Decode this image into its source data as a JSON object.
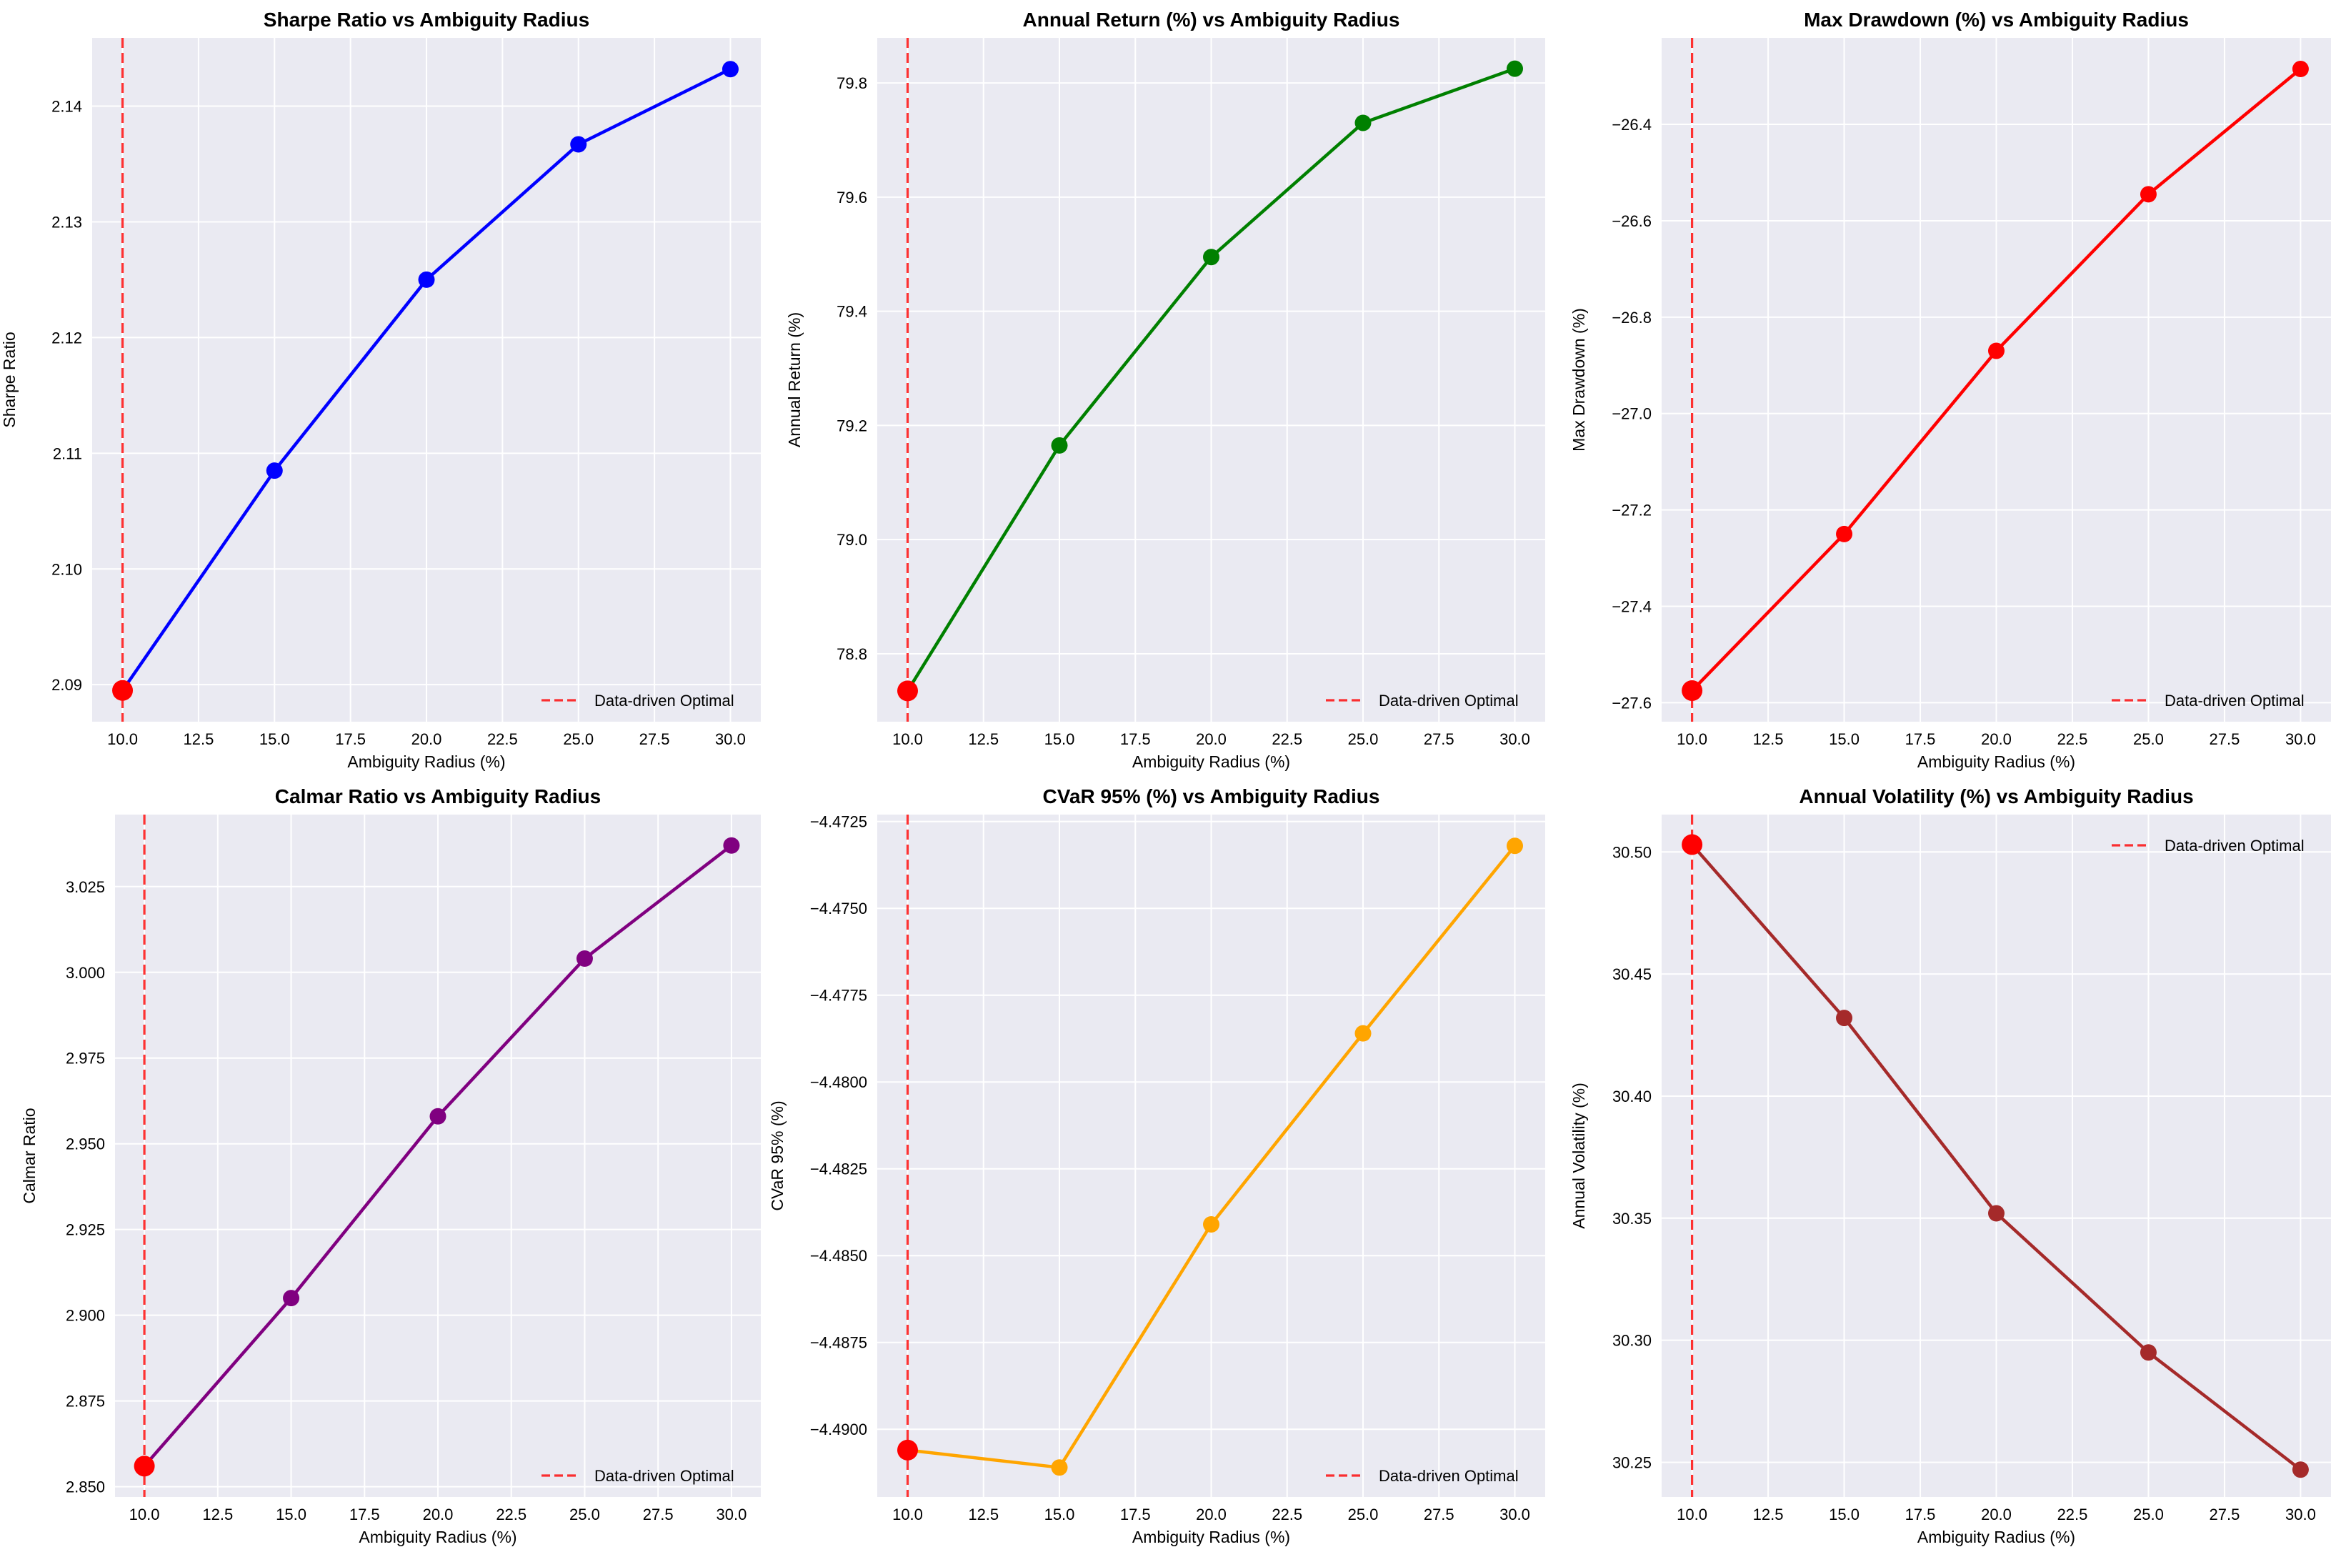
{
  "chart_data": [
    {
      "type": "line",
      "title": "Sharpe Ratio vs Ambiguity Radius",
      "xlabel": "Ambiguity Radius (%)",
      "ylabel": "Sharpe Ratio",
      "x": [
        10,
        15,
        20,
        25,
        30
      ],
      "values": [
        2.0895,
        2.1085,
        2.125,
        2.1367,
        2.1432
      ],
      "xlim": [
        9.0,
        31.0
      ],
      "ylim": [
        2.0868,
        2.1459
      ],
      "xticks": [
        10,
        12.5,
        15,
        17.5,
        20,
        22.5,
        25,
        27.5,
        30
      ],
      "xtick_labels": [
        "10.0",
        "12.5",
        "15.0",
        "17.5",
        "20.0",
        "22.5",
        "25.0",
        "27.5",
        "30.0"
      ],
      "yticks": [
        2.09,
        2.1,
        2.11,
        2.12,
        2.13,
        2.14
      ],
      "ytick_labels": [
        "2.09",
        "2.10",
        "2.11",
        "2.12",
        "2.13",
        "2.14"
      ],
      "color": "#0000ff",
      "optimal_x": 10,
      "legend": "Data-driven Optimal",
      "legend_position": "lower-right"
    },
    {
      "type": "line",
      "title": "Annual Return (%) vs Ambiguity Radius",
      "xlabel": "Ambiguity Radius (%)",
      "ylabel": "Annual Return (%)",
      "x": [
        10,
        15,
        20,
        25,
        30
      ],
      "values": [
        78.735,
        79.165,
        79.495,
        79.73,
        79.825
      ],
      "xlim": [
        9.0,
        31.0
      ],
      "ylim": [
        78.681,
        79.879
      ],
      "xticks": [
        10,
        12.5,
        15,
        17.5,
        20,
        22.5,
        25,
        27.5,
        30
      ],
      "xtick_labels": [
        "10.0",
        "12.5",
        "15.0",
        "17.5",
        "20.0",
        "22.5",
        "25.0",
        "27.5",
        "30.0"
      ],
      "yticks": [
        78.8,
        79.0,
        79.2,
        79.4,
        79.6,
        79.8
      ],
      "ytick_labels": [
        "78.8",
        "79.0",
        "79.2",
        "79.4",
        "79.6",
        "79.8"
      ],
      "color": "#008000",
      "optimal_x": 10,
      "legend": "Data-driven Optimal",
      "legend_position": "lower-right"
    },
    {
      "type": "line",
      "title": "Max Drawdown (%) vs Ambiguity Radius",
      "xlabel": "Ambiguity Radius (%)",
      "ylabel": "Max Drawdown (%)",
      "x": [
        10,
        15,
        20,
        25,
        30
      ],
      "values": [
        -27.575,
        -27.25,
        -26.87,
        -26.545,
        -26.285
      ],
      "xlim": [
        9.0,
        31.0
      ],
      "ylim": [
        -27.6395,
        -26.2205
      ],
      "xticks": [
        10,
        12.5,
        15,
        17.5,
        20,
        22.5,
        25,
        27.5,
        30
      ],
      "xtick_labels": [
        "10.0",
        "12.5",
        "15.0",
        "17.5",
        "20.0",
        "22.5",
        "25.0",
        "27.5",
        "30.0"
      ],
      "yticks": [
        -27.6,
        -27.4,
        -27.2,
        -27.0,
        -26.8,
        -26.6,
        -26.4
      ],
      "ytick_labels": [
        "−27.6",
        "−27.4",
        "−27.2",
        "−27.0",
        "−26.8",
        "−26.6",
        "−26.4"
      ],
      "color": "#ff0000",
      "optimal_x": 10,
      "legend": "Data-driven Optimal",
      "legend_position": "lower-right"
    },
    {
      "type": "line",
      "title": "Calmar Ratio vs Ambiguity Radius",
      "xlabel": "Ambiguity Radius (%)",
      "ylabel": "Calmar Ratio",
      "x": [
        10,
        15,
        20,
        25,
        30
      ],
      "values": [
        2.856,
        2.905,
        2.958,
        3.004,
        3.037
      ],
      "xlim": [
        9.0,
        31.0
      ],
      "ylim": [
        2.847,
        3.046
      ],
      "xticks": [
        10,
        12.5,
        15,
        17.5,
        20,
        22.5,
        25,
        27.5,
        30
      ],
      "xtick_labels": [
        "10.0",
        "12.5",
        "15.0",
        "17.5",
        "20.0",
        "22.5",
        "25.0",
        "27.5",
        "30.0"
      ],
      "yticks": [
        2.85,
        2.875,
        2.9,
        2.925,
        2.95,
        2.975,
        3.0,
        3.025
      ],
      "ytick_labels": [
        "2.850",
        "2.875",
        "2.900",
        "2.925",
        "2.950",
        "2.975",
        "3.000",
        "3.025"
      ],
      "color": "#800080",
      "optimal_x": 10,
      "legend": "Data-driven Optimal",
      "legend_position": "lower-right"
    },
    {
      "type": "line",
      "title": "CVaR 95% (%) vs Ambiguity Radius",
      "xlabel": "Ambiguity Radius (%)",
      "ylabel": "CVaR 95% (%)",
      "x": [
        10,
        15,
        20,
        25,
        30
      ],
      "values": [
        -4.4906,
        -4.4911,
        -4.4841,
        -4.4786,
        -4.4732
      ],
      "xlim": [
        9.0,
        31.0
      ],
      "ylim": [
        -4.49195,
        -4.4723
      ],
      "xticks": [
        10,
        12.5,
        15,
        17.5,
        20,
        22.5,
        25,
        27.5,
        30
      ],
      "xtick_labels": [
        "10.0",
        "12.5",
        "15.0",
        "17.5",
        "20.0",
        "22.5",
        "25.0",
        "27.5",
        "30.0"
      ],
      "yticks": [
        -4.49,
        -4.4875,
        -4.485,
        -4.4825,
        -4.48,
        -4.4775,
        -4.475,
        -4.4725
      ],
      "ytick_labels": [
        "−4.4900",
        "−4.4875",
        "−4.4850",
        "−4.4825",
        "−4.4800",
        "−4.4775",
        "−4.4750",
        "−4.4725"
      ],
      "color": "#ffa500",
      "optimal_x": 10,
      "legend": "Data-driven Optimal",
      "legend_position": "lower-right"
    },
    {
      "type": "line",
      "title": "Annual Volatility (%) vs Ambiguity Radius",
      "xlabel": "Ambiguity Radius (%)",
      "ylabel": "Annual Volatility (%)",
      "x": [
        10,
        15,
        20,
        25,
        30
      ],
      "values": [
        30.503,
        30.432,
        30.352,
        30.295,
        30.247
      ],
      "xlim": [
        9.0,
        31.0
      ],
      "ylim": [
        30.2358,
        30.5153
      ],
      "xticks": [
        10,
        12.5,
        15,
        17.5,
        20,
        22.5,
        25,
        27.5,
        30
      ],
      "xtick_labels": [
        "10.0",
        "12.5",
        "15.0",
        "17.5",
        "20.0",
        "22.5",
        "25.0",
        "27.5",
        "30.0"
      ],
      "yticks": [
        30.25,
        30.3,
        30.35,
        30.4,
        30.45,
        30.5
      ],
      "ytick_labels": [
        "30.25",
        "30.30",
        "30.35",
        "30.40",
        "30.45",
        "30.50"
      ],
      "color": "#a52a2a",
      "optimal_x": 10,
      "legend": "Data-driven Optimal",
      "legend_position": "upper-right"
    }
  ],
  "colors": {
    "axes_background": "#eaeaf2",
    "grid": "#ffffff",
    "optimal_line": "#ff0000",
    "optimal_marker": "#ff0000"
  }
}
